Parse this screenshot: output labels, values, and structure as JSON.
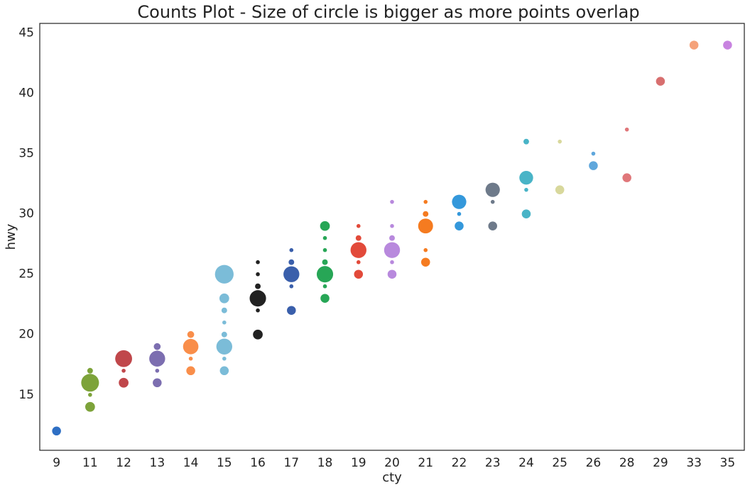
{
  "chart_data": {
    "type": "scatter",
    "title": "Counts Plot - Size of circle is bigger as more points overlap",
    "x_label": "cty",
    "y_label": "hwy",
    "categories": [
      9,
      11,
      12,
      13,
      14,
      15,
      16,
      17,
      18,
      19,
      20,
      21,
      22,
      23,
      24,
      25,
      26,
      28,
      29,
      33,
      35
    ],
    "ylim": [
      10.4,
      45.8
    ],
    "yticks": [
      15,
      20,
      25,
      30,
      35,
      40,
      45
    ],
    "grid": false,
    "series": [
      {
        "color": "#2e6fc4",
        "values": [
          12
        ],
        "sizes": [
          5
        ]
      },
      {
        "color": "#7da33a",
        "values": [
          17,
          16,
          15,
          14
        ],
        "sizes": [
          2,
          20,
          1,
          6
        ]
      },
      {
        "color": "#c0474b",
        "values": [
          18,
          17,
          16
        ],
        "sizes": [
          18,
          1,
          6
        ]
      },
      {
        "color": "#7c6eb0",
        "values": [
          19,
          18,
          17,
          16
        ],
        "sizes": [
          3,
          16,
          1,
          5
        ]
      },
      {
        "color": "#f98e4a",
        "values": [
          20,
          19,
          18,
          17
        ],
        "sizes": [
          3,
          15,
          1,
          5
        ]
      },
      {
        "color": "#7bbcd8",
        "values": [
          25,
          23,
          22,
          21,
          20,
          19,
          18,
          17
        ],
        "sizes": [
          22,
          6,
          2,
          1,
          2,
          16,
          1,
          5
        ]
      },
      {
        "color": "#222222",
        "values": [
          26,
          25,
          24,
          23,
          22,
          20
        ],
        "sizes": [
          1,
          1,
          2,
          17,
          1,
          6
        ]
      },
      {
        "color": "#3a5fab",
        "values": [
          27,
          26,
          25,
          24,
          22
        ],
        "sizes": [
          1,
          2,
          16,
          1,
          5
        ]
      },
      {
        "color": "#27a656",
        "values": [
          29,
          28,
          27,
          26,
          25,
          24,
          23
        ],
        "sizes": [
          6,
          1,
          1,
          2,
          17,
          1,
          5
        ]
      },
      {
        "color": "#e24a3a",
        "values": [
          29,
          28,
          27,
          26,
          25
        ],
        "sizes": [
          1,
          2,
          16,
          1,
          5
        ]
      },
      {
        "color": "#b889dd",
        "values": [
          31,
          29,
          28,
          27,
          26,
          25
        ],
        "sizes": [
          1,
          1,
          2,
          16,
          1,
          5
        ]
      },
      {
        "color": "#f57b20",
        "values": [
          31,
          30,
          29,
          27,
          26
        ],
        "sizes": [
          1,
          2,
          14,
          1,
          5
        ]
      },
      {
        "color": "#3498db",
        "values": [
          31,
          30,
          29
        ],
        "sizes": [
          13,
          1,
          5
        ]
      },
      {
        "color": "#6e7a8a",
        "values": [
          32,
          31,
          29
        ],
        "sizes": [
          13,
          1,
          5
        ]
      },
      {
        "color": "#49b4c7",
        "values": [
          36,
          33,
          32,
          30
        ],
        "sizes": [
          2,
          12,
          1,
          5
        ]
      },
      {
        "color": "#d8d89c",
        "values": [
          36,
          32
        ],
        "sizes": [
          1,
          5
        ]
      },
      {
        "color": "#5fa7dc",
        "values": [
          35,
          34
        ],
        "sizes": [
          1,
          5
        ]
      },
      {
        "color": "#e0777a",
        "values": [
          37,
          33
        ],
        "sizes": [
          1,
          5
        ]
      },
      {
        "color": "#d86f6f",
        "values": [
          41
        ],
        "sizes": [
          5
        ]
      },
      {
        "color": "#f5a27a",
        "values": [
          44
        ],
        "sizes": [
          5
        ]
      },
      {
        "color": "#c883e0",
        "values": [
          44
        ],
        "sizes": [
          5
        ]
      }
    ]
  }
}
